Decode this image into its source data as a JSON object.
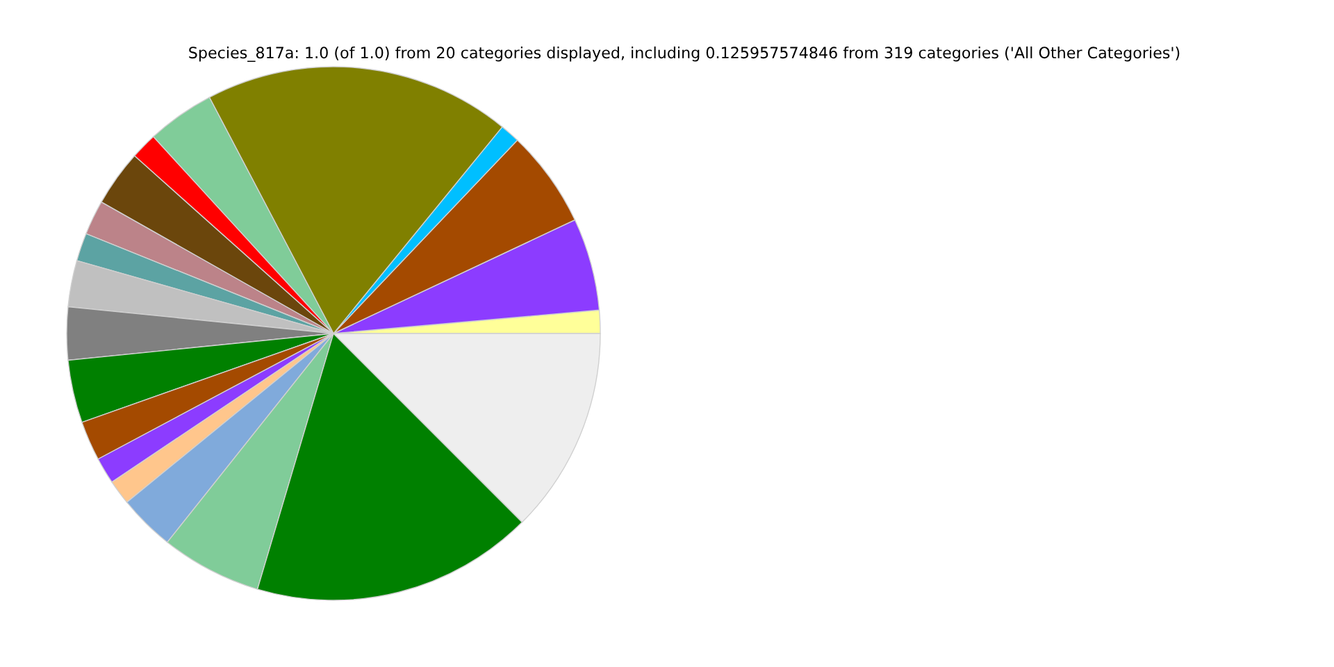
{
  "chart_data": {
    "type": "pie",
    "title": "Species_817a: 1.0 (of 1.0) from 20 categories displayed, including 0.125957574846 from 319 categories ('All Other Categories')",
    "categories": [
      null,
      null,
      null,
      null,
      null,
      null,
      null,
      null,
      null,
      null,
      null,
      null,
      null,
      null,
      null,
      null,
      null,
      null,
      null,
      null
    ],
    "values": [
      1.4,
      5.6,
      5.9,
      1.2,
      18.6,
      4.1,
      1.6,
      3.4,
      2.1,
      1.7,
      2.8,
      3.2,
      3.8,
      2.4,
      1.6,
      1.5,
      3.4,
      6.1,
      17.1,
      12.5
    ],
    "colors": [
      "#ffff99",
      "#8c3cff",
      "#a44a00",
      "#00bfff",
      "#808000",
      "#80cc99",
      "#ff0000",
      "#6b460c",
      "#bc8389",
      "#5ca3a3",
      "#c0c0c0",
      "#808080",
      "#008000",
      "#a44a00",
      "#8c3cff",
      "#ffc68c",
      "#80aadb",
      "#80cc99",
      "#008000",
      "#eeeeee"
    ]
  }
}
